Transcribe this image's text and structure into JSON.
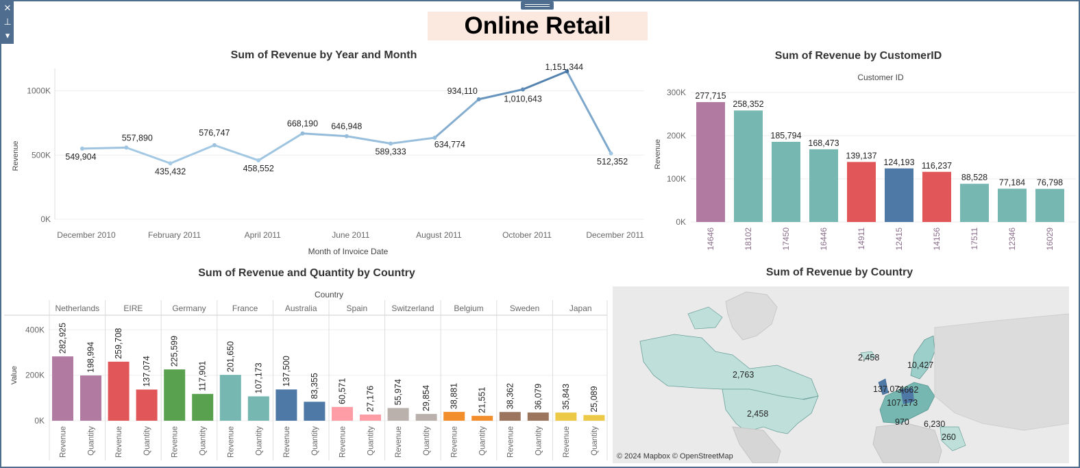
{
  "dashboard": {
    "title": "Online Retail",
    "toolbar_icons": [
      "close-icon",
      "pin-icon",
      "dropdown-icon"
    ]
  },
  "colors": {
    "line_light": "#a6cbe6",
    "line_dark": "#4878a8",
    "purple": "#b07aa1",
    "teal": "#76b7b2",
    "red": "#e15759",
    "blue": "#4e79a7",
    "green": "#59a14f",
    "pink": "#ff9da7",
    "taupe": "#bab0ac",
    "orange": "#f28e2b",
    "brown": "#9c755f",
    "yellow": "#edc948"
  },
  "line_chart": {
    "title": "Sum of Revenue by Year and Month",
    "ylabel": "Revenue",
    "xlabel": "Month of Invoice Date",
    "ytick_labels": [
      "0K",
      "500K",
      "1000K"
    ],
    "xtick_labels": [
      "December 2010",
      "February 2011",
      "April 2011",
      "June 2011",
      "August 2011",
      "October 2011",
      "December 2011"
    ]
  },
  "customer_chart": {
    "title": "Sum of Revenue by CustomerID",
    "header": "Customer ID",
    "ylabel": "Revenue",
    "ytick_labels": [
      "0K",
      "100K",
      "200K",
      "300K"
    ]
  },
  "country_chart": {
    "title": "Sum of Revenue and Quantity by Country",
    "header": "Country",
    "ylabel": "Value",
    "ytick_labels": [
      "0K",
      "200K",
      "400K"
    ]
  },
  "map_chart": {
    "title": "Sum of Revenue by Country",
    "attribution": "© 2024 Mapbox © OpenStreetMap",
    "labels": [
      "2,763",
      "2,458",
      "2,458",
      "10,427",
      "137,074",
      "3,662",
      "107,173",
      "970",
      "6,230",
      "260"
    ]
  },
  "chart_data": [
    {
      "type": "line",
      "title": "Sum of Revenue by Year and Month",
      "xlabel": "Month of Invoice Date",
      "ylabel": "Revenue",
      "x": [
        "December 2010",
        "January 2011",
        "February 2011",
        "March 2011",
        "April 2011",
        "May 2011",
        "June 2011",
        "July 2011",
        "August 2011",
        "September 2011",
        "October 2011",
        "November 2011",
        "December 2011"
      ],
      "values": [
        549904,
        557890,
        435432,
        576747,
        458552,
        668190,
        646948,
        589333,
        634774,
        934110,
        1010643,
        1151344,
        512352
      ],
      "data_labels": [
        "549,904",
        "557,890",
        "435,432",
        "576,747",
        "458,552",
        "668,190",
        "646,948",
        "589,333",
        "634,774",
        "934,110",
        "1,010,643",
        "1,151,344",
        "512,352"
      ],
      "ylim": [
        0,
        1200000
      ],
      "grid": true
    },
    {
      "type": "bar",
      "title": "Sum of Revenue by CustomerID",
      "xlabel": "Customer ID",
      "ylabel": "Revenue",
      "categories": [
        "14646",
        "18102",
        "17450",
        "16446",
        "14911",
        "12415",
        "14156",
        "17511",
        "12346",
        "16029"
      ],
      "values": [
        277715,
        258352,
        185794,
        168473,
        139137,
        124193,
        116237,
        88528,
        77184,
        76798
      ],
      "data_labels": [
        "277,715",
        "258,352",
        "185,794",
        "168,473",
        "139,137",
        "124,193",
        "116,237",
        "88,528",
        "77,184",
        "76,798"
      ],
      "bar_colors": [
        "#b07aa1",
        "#76b7b2",
        "#76b7b2",
        "#76b7b2",
        "#e15759",
        "#4e79a7",
        "#e15759",
        "#76b7b2",
        "#76b7b2",
        "#76b7b2"
      ],
      "ylim": [
        0,
        300000
      ]
    },
    {
      "type": "bar",
      "title": "Sum of Revenue and Quantity by Country",
      "xlabel": "Country",
      "ylabel": "Value",
      "categories": [
        "Netherlands",
        "EIRE",
        "Germany",
        "France",
        "Australia",
        "Spain",
        "Switzerland",
        "Belgium",
        "Sweden",
        "Japan"
      ],
      "measures": [
        "Revenue",
        "Quantity"
      ],
      "series": [
        {
          "name": "Revenue",
          "values": [
            282925,
            259708,
            225599,
            201650,
            137500,
            60571,
            55974,
            38881,
            38362,
            35843
          ],
          "labels": [
            "282,925",
            "259,708",
            "225,599",
            "201,650",
            "137,500",
            "60,571",
            "55,974",
            "38,881",
            "38,362",
            "35,843"
          ]
        },
        {
          "name": "Quantity",
          "values": [
            198994,
            137074,
            117901,
            107173,
            83355,
            27176,
            29854,
            21551,
            36079,
            25089
          ],
          "labels": [
            "198,994",
            "137,074",
            "117,901",
            "107,173",
            "83,355",
            "27,176",
            "29,854",
            "21,551",
            "36,079",
            "25,089"
          ]
        }
      ],
      "country_colors": [
        "#b07aa1",
        "#e15759",
        "#59a14f",
        "#76b7b2",
        "#4e79a7",
        "#ff9da7",
        "#bab0ac",
        "#f28e2b",
        "#9c755f",
        "#edc948"
      ],
      "ylim": [
        0,
        400000
      ]
    }
  ]
}
